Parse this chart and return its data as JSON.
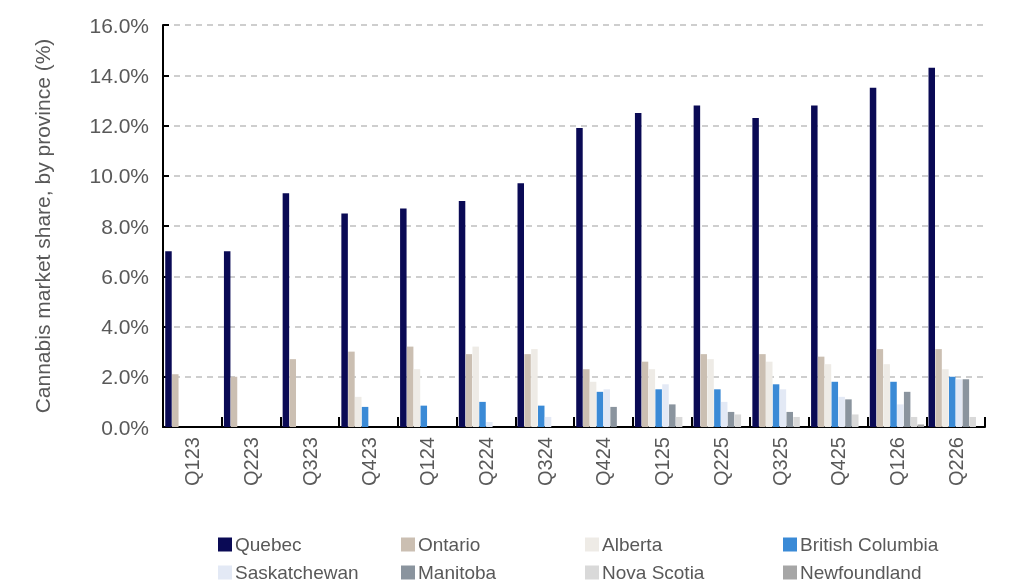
{
  "chart_data": {
    "type": "bar",
    "ylabel": "Cannabis market share, by province (%)",
    "categories": [
      "Q123",
      "Q223",
      "Q323",
      "Q423",
      "Q124",
      "Q224",
      "Q324",
      "Q424",
      "Q125",
      "Q225",
      "Q325",
      "Q425",
      "Q126",
      "Q226"
    ],
    "series": [
      {
        "name": "Quebec",
        "color": "#0a0a55",
        "values": [
          7.0,
          7.0,
          9.3,
          8.5,
          8.7,
          9.0,
          9.7,
          11.9,
          12.5,
          12.8,
          12.3,
          12.8,
          13.5,
          14.3
        ]
      },
      {
        "name": "Ontario",
        "color": "#cbbfb2",
        "values": [
          2.1,
          2.0,
          2.7,
          3.0,
          3.2,
          2.9,
          2.9,
          2.3,
          2.6,
          2.9,
          2.9,
          2.8,
          3.1,
          3.1
        ]
      },
      {
        "name": "Alberta",
        "color": "#eeebe6",
        "values": [
          null,
          null,
          null,
          1.2,
          2.3,
          3.2,
          3.1,
          1.8,
          2.3,
          2.7,
          2.6,
          2.5,
          2.5,
          2.3
        ]
      },
      {
        "name": "British Columbia",
        "color": "#3a8ad6",
        "values": [
          null,
          null,
          null,
          0.8,
          0.85,
          1.0,
          0.85,
          1.4,
          1.5,
          1.5,
          1.7,
          1.8,
          1.8,
          2.0
        ]
      },
      {
        "name": "Saskatchewan",
        "color": "#e3e9f5",
        "values": [
          null,
          null,
          null,
          null,
          null,
          0.2,
          0.4,
          1.5,
          1.7,
          1.0,
          1.5,
          1.2,
          0.9,
          1.9
        ]
      },
      {
        "name": "Manitoba",
        "color": "#8a949e",
        "values": [
          null,
          null,
          null,
          null,
          null,
          null,
          null,
          0.8,
          0.9,
          0.6,
          0.6,
          1.1,
          1.4,
          1.9
        ]
      },
      {
        "name": "Nova Scotia",
        "color": "#d9d9d9",
        "values": [
          null,
          null,
          null,
          null,
          null,
          null,
          null,
          null,
          0.4,
          0.5,
          0.4,
          0.5,
          0.4,
          0.4
        ]
      },
      {
        "name": "Newfoundland",
        "color": "#a6a6a6",
        "values": [
          null,
          null,
          null,
          null,
          null,
          null,
          null,
          null,
          null,
          null,
          null,
          null,
          0.1,
          null
        ]
      }
    ],
    "ylim": [
      0,
      16
    ],
    "yticks": [
      {
        "value": 0,
        "label": "0.0%"
      },
      {
        "value": 2,
        "label": "2.0%"
      },
      {
        "value": 4,
        "label": "4.0%"
      },
      {
        "value": 6,
        "label": "6.0%"
      },
      {
        "value": 8,
        "label": "8.0%"
      },
      {
        "value": 10,
        "label": "10.0%"
      },
      {
        "value": 12,
        "label": "12.0%"
      },
      {
        "value": 14,
        "label": "14.0%"
      },
      {
        "value": 16,
        "label": "16.0%"
      }
    ],
    "grid": "y",
    "legend": "bottom"
  }
}
